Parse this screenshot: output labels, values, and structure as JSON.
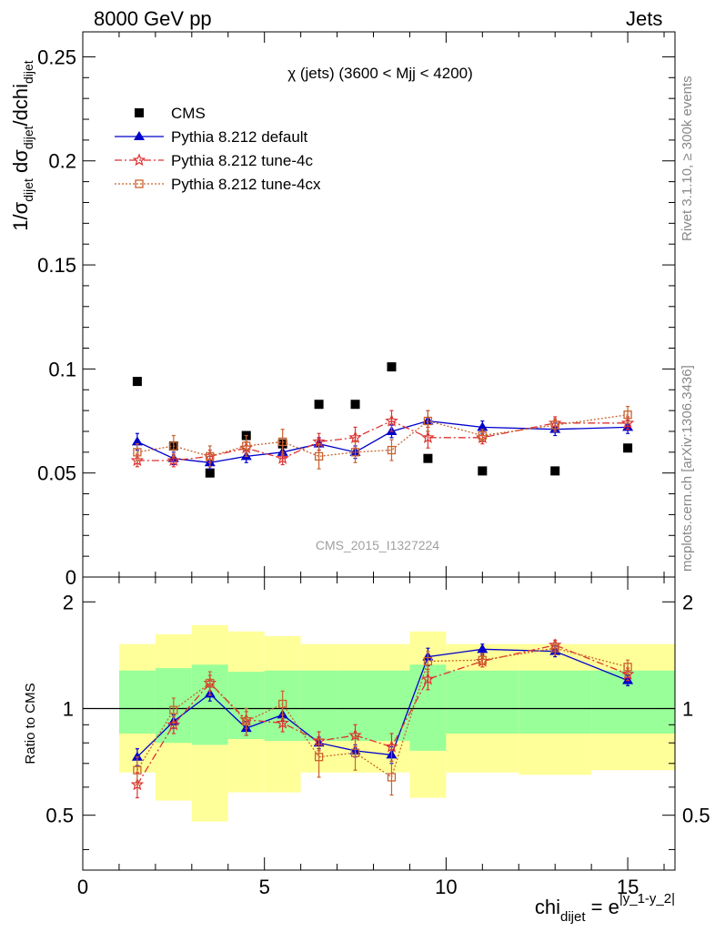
{
  "header": {
    "left": "8000 GeV pp",
    "right": "Jets"
  },
  "side_text": {
    "rivet": "Rivet 3.1.10, ≥ 300k events",
    "mcplots": "mcplots.cern.ch [arXiv:1306.3436]"
  },
  "chart_data": [
    {
      "type": "scatter",
      "title": "χ (jets) (3600 < Mjj < 4200)",
      "ylabel": "1/σ_dijet dσ_dijet/dchi_dijet",
      "xlim": [
        0,
        16.3
      ],
      "ylim": [
        0,
        0.262
      ],
      "yticks": [
        0.05,
        0.1,
        0.15,
        0.2,
        0.25
      ],
      "ytick_labels": [
        "0.05",
        "0.1",
        "0.15",
        "0.2",
        "0.25"
      ],
      "bottom_tick_label": "0",
      "watermark": "CMS_2015_I1327224",
      "legend_position": "top-left",
      "x": [
        1.5,
        2.5,
        3.5,
        4.5,
        5.5,
        6.5,
        7.5,
        8.5,
        9.5,
        11,
        13,
        15
      ],
      "series": [
        {
          "name": "CMS",
          "color": "#000000",
          "marker": "filled-square",
          "values": [
            0.094,
            0.063,
            0.05,
            0.068,
            0.064,
            0.083,
            0.083,
            0.101,
            0.057,
            0.051,
            0.051,
            0.062
          ]
        },
        {
          "name": "Pythia 8.212 default",
          "color": "#0000cc",
          "marker": "filled-triangle",
          "line": "solid",
          "values": [
            0.065,
            0.057,
            0.055,
            0.058,
            0.06,
            0.064,
            0.06,
            0.07,
            0.075,
            0.072,
            0.071,
            0.072
          ],
          "errors": [
            0.004,
            0.003,
            0.003,
            0.003,
            0.003,
            0.003,
            0.003,
            0.003,
            0.005,
            0.003,
            0.003,
            0.003
          ]
        },
        {
          "name": "Pythia 8.212 tune-4c",
          "color": "#dd3333",
          "marker": "star",
          "line": "dashdot",
          "values": [
            0.056,
            0.056,
            0.058,
            0.062,
            0.057,
            0.065,
            0.067,
            0.075,
            0.067,
            0.067,
            0.074,
            0.074
          ],
          "errors": [
            0.003,
            0.003,
            0.003,
            0.003,
            0.003,
            0.004,
            0.005,
            0.005,
            0.005,
            0.003,
            0.003,
            0.003
          ]
        },
        {
          "name": "Pythia 8.212 tune-4cx",
          "color": "#c8642d",
          "marker": "open-square",
          "line": "dotted",
          "values": [
            0.06,
            0.063,
            0.058,
            0.063,
            0.065,
            0.058,
            0.06,
            0.061,
            0.075,
            0.068,
            0.073,
            0.078
          ],
          "errors": [
            0.004,
            0.005,
            0.005,
            0.005,
            0.006,
            0.006,
            0.005,
            0.005,
            0.005,
            0.003,
            0.003,
            0.004
          ]
        }
      ]
    },
    {
      "type": "scatter",
      "ylabel": "Ratio to CMS",
      "xlabel": "chi_dijet = e^|y_1-y_2|",
      "xlim": [
        0,
        16.3
      ],
      "xticks": [
        0,
        5,
        10,
        15
      ],
      "xtick_labels": [
        "0",
        "5",
        "10",
        "15"
      ],
      "ylim": [
        0.35,
        2.35
      ],
      "yticks": [
        0.5,
        1,
        2
      ],
      "ytick_labels": [
        "0.5",
        "1",
        "2"
      ],
      "reference_line": 1,
      "bands": [
        {
          "x": [
            1,
            2
          ],
          "inner": [
            0.85,
            1.28
          ],
          "outer": [
            0.66,
            1.52
          ]
        },
        {
          "x": [
            2,
            3
          ],
          "inner": [
            0.8,
            1.3
          ],
          "outer": [
            0.55,
            1.62
          ]
        },
        {
          "x": [
            3,
            4
          ],
          "inner": [
            0.79,
            1.33
          ],
          "outer": [
            0.48,
            1.72
          ]
        },
        {
          "x": [
            4,
            5
          ],
          "inner": [
            0.82,
            1.27
          ],
          "outer": [
            0.58,
            1.65
          ]
        },
        {
          "x": [
            5,
            6
          ],
          "inner": [
            0.81,
            1.28
          ],
          "outer": [
            0.58,
            1.6
          ]
        },
        {
          "x": [
            6,
            7
          ],
          "inner": [
            0.81,
            1.28
          ],
          "outer": [
            0.66,
            1.52
          ]
        },
        {
          "x": [
            7,
            8
          ],
          "inner": [
            0.81,
            1.28
          ],
          "outer": [
            0.66,
            1.52
          ]
        },
        {
          "x": [
            8,
            9
          ],
          "inner": [
            0.81,
            1.28
          ],
          "outer": [
            0.66,
            1.52
          ]
        },
        {
          "x": [
            9,
            10
          ],
          "inner": [
            0.76,
            1.33
          ],
          "outer": [
            0.56,
            1.65
          ]
        },
        {
          "x": [
            10,
            12
          ],
          "inner": [
            0.85,
            1.28
          ],
          "outer": [
            0.66,
            1.52
          ]
        },
        {
          "x": [
            12,
            14
          ],
          "inner": [
            0.85,
            1.28
          ],
          "outer": [
            0.65,
            1.52
          ]
        },
        {
          "x": [
            14,
            16.3
          ],
          "inner": [
            0.85,
            1.28
          ],
          "outer": [
            0.67,
            1.52
          ]
        }
      ],
      "band_colors": {
        "inner": "#99ff99",
        "outer": "#ffff99"
      },
      "x": [
        1.5,
        2.5,
        3.5,
        4.5,
        5.5,
        6.5,
        7.5,
        8.5,
        9.5,
        11,
        13,
        15
      ],
      "series": [
        {
          "name": "Pythia 8.212 default",
          "color": "#0000cc",
          "marker": "filled-triangle",
          "line": "solid",
          "values": [
            0.73,
            0.92,
            1.1,
            0.88,
            0.96,
            0.8,
            0.76,
            0.74,
            1.4,
            1.47,
            1.45,
            1.2
          ],
          "errors": [
            0.04,
            0.04,
            0.05,
            0.04,
            0.04,
            0.03,
            0.03,
            0.04,
            0.08,
            0.05,
            0.05,
            0.04
          ]
        },
        {
          "name": "Pythia 8.212 tune-4c",
          "color": "#dd3333",
          "marker": "star",
          "line": "dashdot",
          "values": [
            0.61,
            0.9,
            1.18,
            0.93,
            0.91,
            0.81,
            0.84,
            0.78,
            1.21,
            1.36,
            1.51,
            1.25
          ],
          "errors": [
            0.05,
            0.05,
            0.06,
            0.05,
            0.05,
            0.05,
            0.06,
            0.07,
            0.08,
            0.05,
            0.05,
            0.05
          ]
        },
        {
          "name": "Pythia 8.212 tune-4cx",
          "color": "#c8642d",
          "marker": "open-square",
          "line": "dotted",
          "values": [
            0.67,
            0.99,
            1.18,
            0.92,
            1.03,
            0.73,
            0.75,
            0.64,
            1.36,
            1.37,
            1.48,
            1.31
          ],
          "errors": [
            0.06,
            0.08,
            0.09,
            0.08,
            0.09,
            0.09,
            0.08,
            0.07,
            0.09,
            0.06,
            0.06,
            0.06
          ]
        }
      ]
    }
  ]
}
